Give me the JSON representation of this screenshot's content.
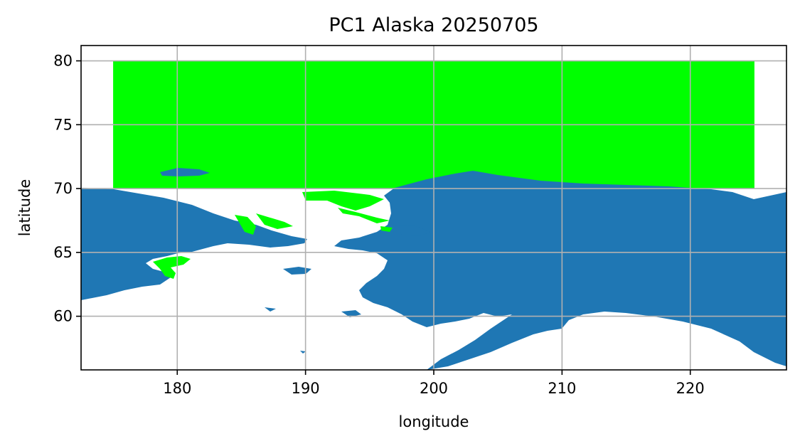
{
  "chart_data": {
    "type": "map",
    "title": "PC1 Alaska 20250705",
    "xlabel": "longitude",
    "ylabel": "latitude",
    "xlim": [
      172.5,
      227.5
    ],
    "ylim": [
      55.8,
      81.2
    ],
    "xticks": [
      180,
      190,
      200,
      210,
      220
    ],
    "yticks": [
      60,
      65,
      70,
      75,
      80
    ],
    "grid": true,
    "colors": {
      "land": "#1f77b4",
      "data_region": "#00ff00",
      "ocean": "#ffffff"
    },
    "data_region": {
      "lon": [
        175,
        225
      ],
      "lat": [
        70,
        80
      ]
    }
  }
}
